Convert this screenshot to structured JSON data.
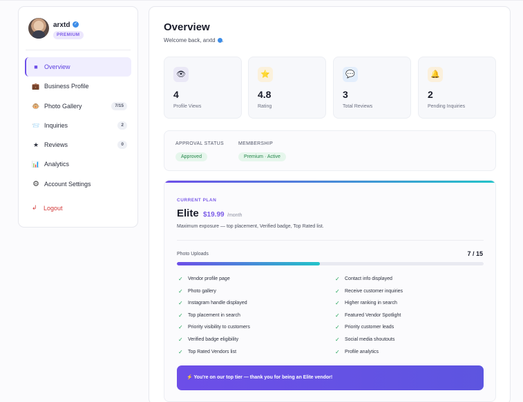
{
  "sidebar": {
    "profile": {
      "name": "arxtd",
      "badge": "PREMIUM"
    },
    "items": [
      {
        "label": "Overview",
        "icon": "overview-square-icon",
        "glyph": "■"
      },
      {
        "label": "Business Profile",
        "icon": "briefcase-icon",
        "glyph": "💼"
      },
      {
        "label": "Photo Gallery",
        "icon": "photo-gallery-icon",
        "glyph": "🐵",
        "badge": "7/15"
      },
      {
        "label": "Inquiries",
        "icon": "inquiries-icon",
        "glyph": "📨",
        "badge": "2"
      },
      {
        "label": "Reviews",
        "icon": "star-icon",
        "glyph": "★",
        "badge": "0"
      },
      {
        "label": "Analytics",
        "icon": "bar-chart-icon",
        "glyph": "📊"
      },
      {
        "label": "Account Settings",
        "icon": "gear-icon",
        "glyph": "⚙"
      }
    ],
    "logout": {
      "label": "Logout",
      "icon": "logout-icon",
      "glyph": "↲"
    }
  },
  "main": {
    "title": "Overview",
    "welcome": "Welcome back, arxtd",
    "stats": [
      {
        "value": "4",
        "label": "Profile Views",
        "icon": "eye-icon",
        "glyph": "👁"
      },
      {
        "value": "4.8",
        "label": "Rating",
        "icon": "star-icon",
        "glyph": "⭐"
      },
      {
        "value": "3",
        "label": "Total Reviews",
        "icon": "chat-bubble-icon",
        "glyph": "💬"
      },
      {
        "value": "2",
        "label": "Pending Inquiries",
        "icon": "bell-icon",
        "glyph": "🔔"
      }
    ],
    "status": {
      "approval_heading": "APPROVAL STATUS",
      "approval_value": "Approved",
      "membership_heading": "MEMBERSHIP",
      "membership_value": "Premium · Active"
    },
    "plan": {
      "kicker": "CURRENT PLAN",
      "name": "Elite",
      "price": "$19.99",
      "per": "/month",
      "description": "Maximum exposure — top placement, Verified badge, Top Rated list.",
      "uploads_label": "Photo Uploads",
      "uploads_count": "7 / 15",
      "uploads_fraction": 0.4667,
      "features_left": [
        "Vendor profile page",
        "Photo gallery",
        "Instagram handle displayed",
        "Top placement in search",
        "Priority visibility to customers",
        "Verified badge eligibility",
        "Top Rated Vendors list"
      ],
      "features_right": [
        "Contact info displayed",
        "Receive customer inquiries",
        "Higher ranking in search",
        "Featured Vendor Spotlight",
        "Priority customer leads",
        "Social media shoutouts",
        "Profile analytics"
      ],
      "banner": "⚡ You're on our top tier — thank you for being an Elite vendor!"
    }
  },
  "colors": {
    "accent": "#6d4ee8",
    "accent_secondary": "#22c3c9",
    "success": "#23864a",
    "danger": "#d33a3a"
  }
}
